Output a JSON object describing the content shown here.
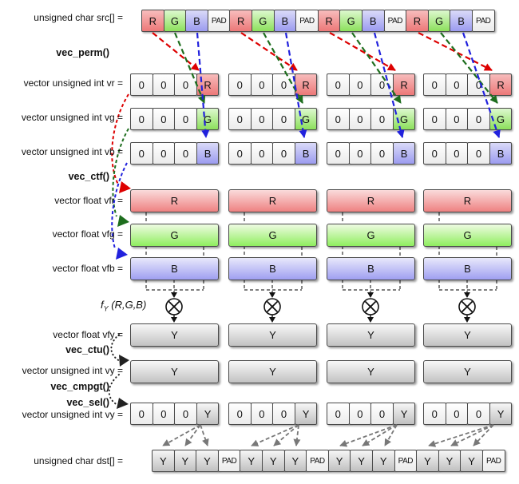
{
  "labels": {
    "src": "unsigned char src[] =",
    "vr": "vector unsigned int vr =",
    "vg": "vector unsigned int vg =",
    "vb": "vector unsigned int vb =",
    "vfr": "vector float vfr =",
    "vfg": "vector float vfg =",
    "vfb": "vector float vfb =",
    "vfy": "vector float vfy =",
    "vy": "vector unsigned int vy =",
    "vy2": "vector unsigned int vy =",
    "dst": "unsigned char dst[] ="
  },
  "functions": {
    "perm": "vec_perm()",
    "ctf": "vec_ctf()",
    "ctu": "vec_ctu()",
    "cmpgt": "vec_cmpgt()",
    "sel": "vec_sel()"
  },
  "fy": {
    "f": "f",
    "sub": "Y",
    "args": " (R,G,B)",
    "op": "circled-times"
  },
  "rows": {
    "src_cells": [
      "R",
      "G",
      "B",
      "PAD",
      "R",
      "G",
      "B",
      "PAD",
      "R",
      "G",
      "B",
      "PAD",
      "R",
      "G",
      "B",
      "PAD"
    ],
    "vr_groups": [
      [
        "0",
        "0",
        "0",
        "R"
      ],
      [
        "0",
        "0",
        "0",
        "R"
      ],
      [
        "0",
        "0",
        "0",
        "R"
      ],
      [
        "0",
        "0",
        "0",
        "R"
      ]
    ],
    "vg_groups": [
      [
        "0",
        "0",
        "0",
        "G"
      ],
      [
        "0",
        "0",
        "0",
        "G"
      ],
      [
        "0",
        "0",
        "0",
        "G"
      ],
      [
        "0",
        "0",
        "0",
        "G"
      ]
    ],
    "vb_groups": [
      [
        "0",
        "0",
        "0",
        "B"
      ],
      [
        "0",
        "0",
        "0",
        "B"
      ],
      [
        "0",
        "0",
        "0",
        "B"
      ],
      [
        "0",
        "0",
        "0",
        "B"
      ]
    ],
    "vfr_bars": [
      "R",
      "R",
      "R",
      "R"
    ],
    "vfg_bars": [
      "G",
      "G",
      "G",
      "G"
    ],
    "vfb_bars": [
      "B",
      "B",
      "B",
      "B"
    ],
    "vfy_bars": [
      "Y",
      "Y",
      "Y",
      "Y"
    ],
    "vy_bars": [
      "Y",
      "Y",
      "Y",
      "Y"
    ],
    "vysel_groups": [
      [
        "0",
        "0",
        "0",
        "Y"
      ],
      [
        "0",
        "0",
        "0",
        "Y"
      ],
      [
        "0",
        "0",
        "0",
        "Y"
      ],
      [
        "0",
        "0",
        "0",
        "Y"
      ]
    ],
    "dst_cells": [
      "Y",
      "Y",
      "Y",
      "PAD",
      "Y",
      "Y",
      "Y",
      "PAD",
      "Y",
      "Y",
      "Y",
      "PAD",
      "Y",
      "Y",
      "Y",
      "PAD"
    ]
  },
  "colors": {
    "red_arrow": "#dd0000",
    "green_arrow": "#1e6e1e",
    "blue_arrow": "#2121dd",
    "gray_arrow": "#787878",
    "line_black": "#222222",
    "cell_red": "#ec7878",
    "cell_green": "#8ce05c",
    "cell_blue": "#9b9bef",
    "cell_gray": "#c0c0c0"
  }
}
